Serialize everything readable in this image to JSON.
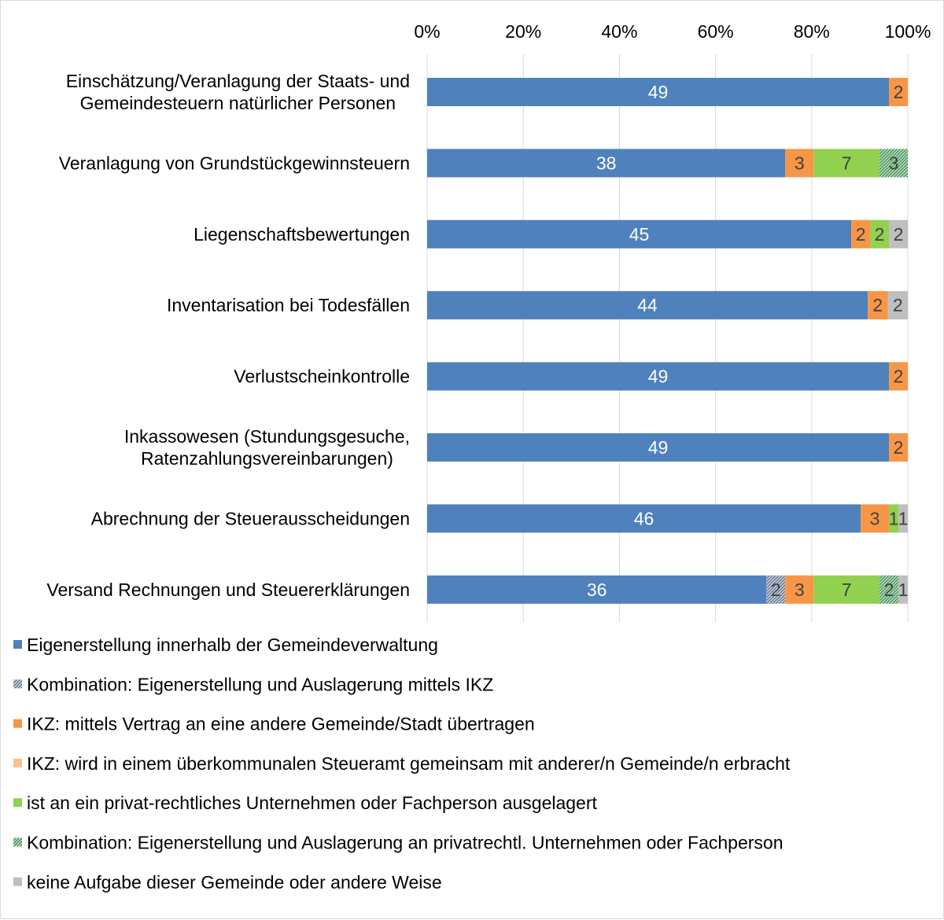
{
  "colors": {
    "own": "#4f81bd",
    "combo_ikz": "#8497b0",
    "ikz_contract": "#f79646",
    "ikz_joint": "#fac090",
    "private": "#92d050",
    "combo_private": "#4e9a5a",
    "none": "#bfbfbf",
    "grid": "#d9d9d9",
    "text": "#000000"
  },
  "chart_data": {
    "type": "bar",
    "orientation": "horizontal",
    "stacked": "percent",
    "title": "",
    "xlabel": "",
    "ylabel": "",
    "xlim": [
      0,
      100
    ],
    "grid": true,
    "legend_position": "bottom",
    "x_ticks": [
      "0%",
      "20%",
      "40%",
      "60%",
      "80%",
      "100%"
    ],
    "categories": [
      [
        "Einschätzung/Veranlagung der Staats- und",
        "Gemeindesteuern natürlicher Personen"
      ],
      [
        "Veranlagung von Grundstückgewinnsteuern"
      ],
      [
        "Liegenschaftsbewertungen"
      ],
      [
        "Inventarisation bei Todesfällen"
      ],
      [
        "Verlustscheinkontrolle"
      ],
      [
        "Inkassowesen (Stundungsgesuche,",
        "Ratenzahlungsvereinbarungen)"
      ],
      [
        "Abrechnung der Steuerausscheidungen"
      ],
      [
        "Versand Rechnungen und Steuererklärungen"
      ]
    ],
    "series": [
      {
        "key": "own",
        "name": "Eigenerstellung innerhalb der Gemeindeverwaltung",
        "pattern": "solid",
        "label_color": "#ffffff",
        "values": [
          49,
          38,
          45,
          44,
          49,
          49,
          46,
          36
        ]
      },
      {
        "key": "combo_ikz",
        "name": "Kombination: Eigenerstellung und Auslagerung mittels IKZ",
        "pattern": "hatch-dark",
        "label_color": "#404040",
        "values": [
          0,
          0,
          0,
          0,
          0,
          0,
          0,
          2
        ]
      },
      {
        "key": "ikz_contract",
        "name": "IKZ: mittels Vertrag an eine andere Gemeinde/Stadt übertragen",
        "pattern": "solid",
        "label_color": "#404040",
        "values": [
          2,
          3,
          2,
          2,
          2,
          2,
          3,
          3
        ]
      },
      {
        "key": "ikz_joint",
        "name": "IKZ: wird in einem überkommunalen Steueramt gemeinsam mit anderer/n Gemeinde/n erbracht",
        "pattern": "solid",
        "label_color": "#404040",
        "values": [
          0,
          0,
          0,
          0,
          0,
          0,
          0,
          0
        ]
      },
      {
        "key": "private",
        "name": "ist an ein privat-rechtliches Unternehmen oder Fachperson ausgelagert",
        "pattern": "solid",
        "label_color": "#404040",
        "values": [
          0,
          7,
          2,
          0,
          0,
          0,
          1,
          7
        ]
      },
      {
        "key": "combo_private",
        "name": "Kombination: Eigenerstellung und Auslagerung an privatrechtl. Unternehmen oder Fachperson",
        "pattern": "hatch-green",
        "label_color": "#404040",
        "values": [
          0,
          3,
          0,
          0,
          0,
          0,
          0,
          2
        ]
      },
      {
        "key": "none",
        "name": "keine Aufgabe dieser Gemeinde oder andere Weise",
        "pattern": "solid",
        "label_color": "#404040",
        "values": [
          0,
          0,
          2,
          2,
          0,
          0,
          1,
          1
        ]
      }
    ]
  }
}
